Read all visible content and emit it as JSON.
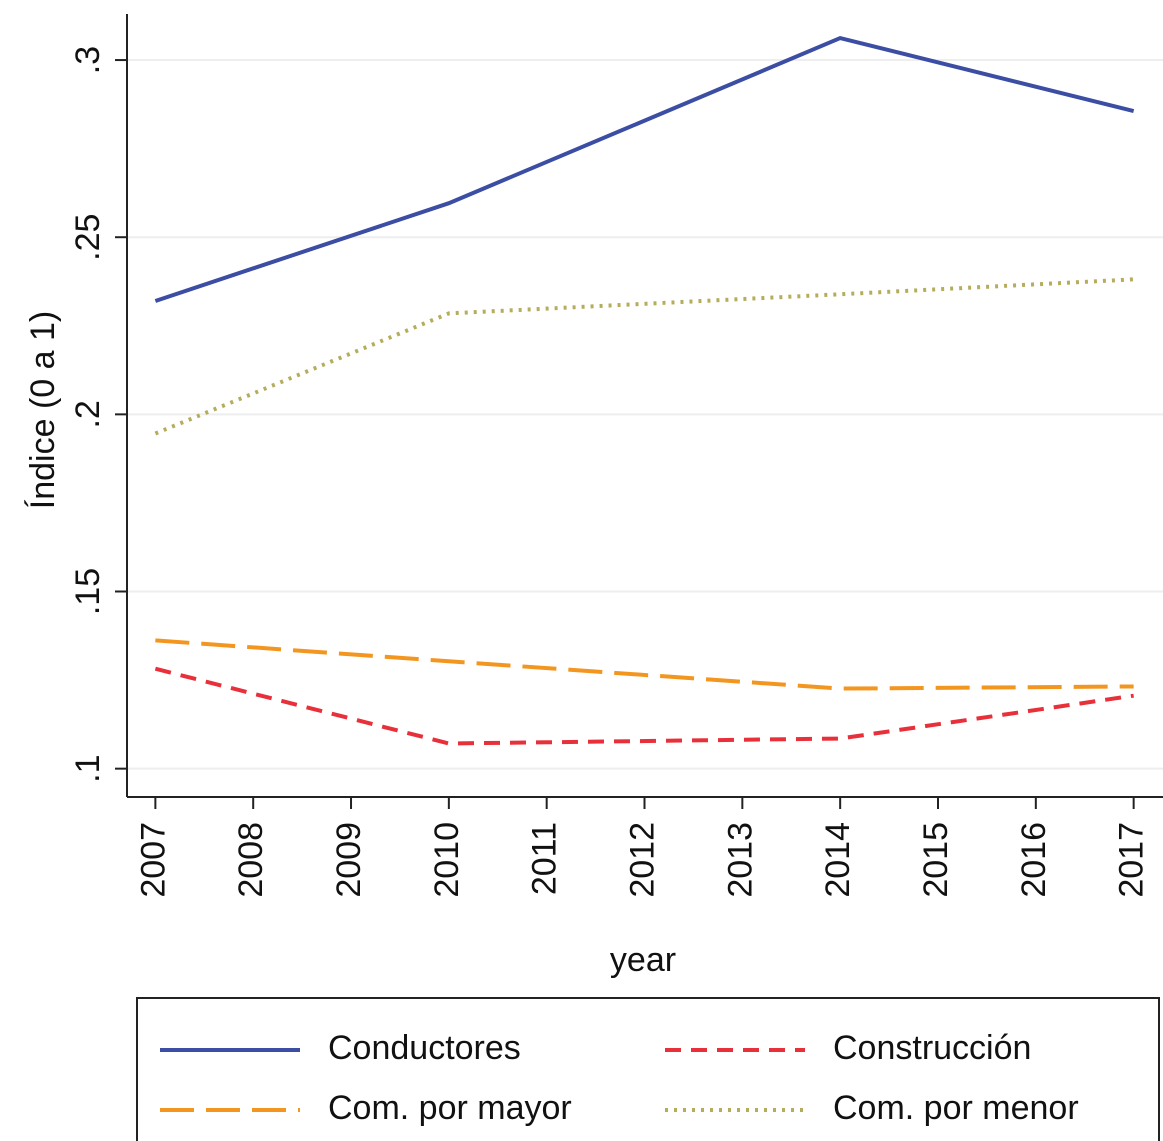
{
  "chart_data": {
    "type": "line",
    "ylabel": "Índice (0 a 1)",
    "xlabel": "year",
    "x": [
      2007,
      2010,
      2014,
      2017
    ],
    "series": [
      {
        "name": "Conductores",
        "color": "#3b4ea3",
        "dash": "solid",
        "values": [
          0.232,
          0.2596,
          0.3062,
          0.2856
        ]
      },
      {
        "name": "Construcción",
        "color": "#e8303a",
        "dash": "dash",
        "values": [
          0.1282,
          0.1071,
          0.1085,
          0.1206
        ]
      },
      {
        "name": "Com. por mayor",
        "color": "#f39620",
        "dash": "longdash",
        "values": [
          0.1362,
          0.1303,
          0.1226,
          0.1232
        ]
      },
      {
        "name": "Com. por menor",
        "color": "#b5ad5c",
        "dash": "dot",
        "values": [
          0.1946,
          0.2285,
          0.2339,
          0.2381
        ]
      }
    ],
    "xlim": [
      2006.71,
      2017.3
    ],
    "xticks": [
      2007,
      2008,
      2009,
      2010,
      2011,
      2012,
      2013,
      2014,
      2015,
      2016,
      2017
    ],
    "ylim": [
      0.092,
      0.313
    ],
    "yticks": [
      {
        "value": 0.1,
        "label": ".1"
      },
      {
        "value": 0.15,
        "label": ".15"
      },
      {
        "value": 0.2,
        "label": ".2"
      },
      {
        "value": 0.25,
        "label": ".25"
      },
      {
        "value": 0.3,
        "label": ".3"
      }
    ],
    "grid": true,
    "legend": "bottom"
  }
}
